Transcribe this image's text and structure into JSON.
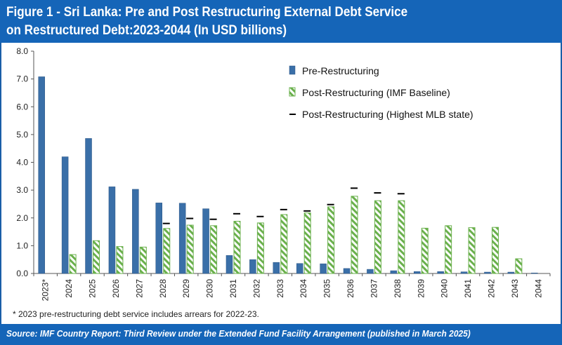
{
  "title": {
    "line1": "Figure 1 - Sri Lanka: Pre and Post Restructuring External Debt Service",
    "line2": "on Restructured Debt:2023-2044 (In USD billions)"
  },
  "footnote": "* 2023 pre-restructuring debt service includes arrears for 2022-23.",
  "source": "Source: IMF Country Report: Third Review under the Extended Fund Facility Arrangement (published in March 2025)",
  "colors": {
    "header": "#1565b8",
    "pre": "#3a6fa8",
    "post": "#6ab04c",
    "mlb": "#000000"
  },
  "chart_data": {
    "type": "bar",
    "categories": [
      "2023*",
      "2024",
      "2025",
      "2026",
      "2027",
      "2028",
      "2029",
      "2030",
      "2031",
      "2032",
      "2033",
      "2034",
      "2035",
      "2036",
      "2037",
      "2038",
      "2039",
      "2040",
      "2041",
      "2042",
      "2043",
      "2044"
    ],
    "ylim": [
      0,
      8
    ],
    "yticks": [
      "0.0",
      "1.0",
      "2.0",
      "3.0",
      "4.0",
      "5.0",
      "6.0",
      "7.0",
      "8.0"
    ],
    "grid": false,
    "legend_position": "top-right",
    "series": [
      {
        "name": "Pre-Restructuring",
        "style": "bar",
        "values": [
          7.08,
          4.2,
          4.86,
          3.12,
          3.03,
          2.54,
          2.53,
          2.33,
          0.65,
          0.5,
          0.4,
          0.36,
          0.35,
          0.18,
          0.15,
          0.1,
          0.07,
          0.07,
          0.06,
          0.05,
          0.05,
          0.02
        ]
      },
      {
        "name": "Post-Restructuring (IMF Baseline)",
        "style": "hatched-bar",
        "values": [
          0,
          0.68,
          1.18,
          0.97,
          0.95,
          1.62,
          1.74,
          1.72,
          1.88,
          1.82,
          2.12,
          2.18,
          2.4,
          2.78,
          2.62,
          2.62,
          1.63,
          1.72,
          1.65,
          1.66,
          0.53,
          0
        ]
      },
      {
        "name": "Post-Restructuring (Highest MLB state)",
        "style": "dash-marker",
        "values": [
          null,
          null,
          null,
          null,
          null,
          1.8,
          1.98,
          1.95,
          2.15,
          2.05,
          2.3,
          2.25,
          2.48,
          3.07,
          2.9,
          2.87,
          null,
          null,
          null,
          null,
          null,
          null
        ]
      }
    ]
  }
}
